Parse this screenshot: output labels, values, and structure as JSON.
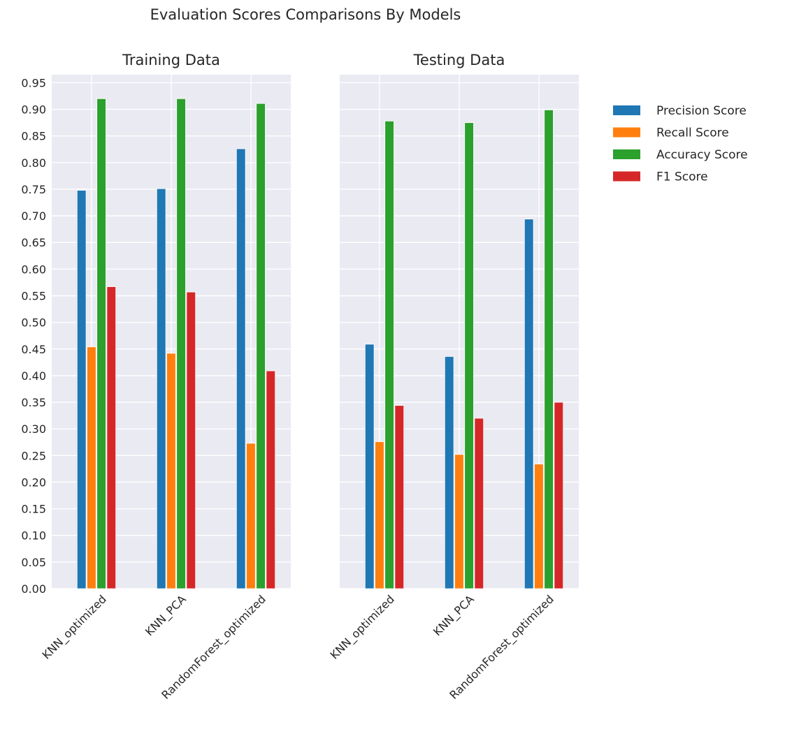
{
  "chart_data": {
    "type": "bar",
    "title": "Evaluation Scores Comparisons By Models",
    "ylim": [
      0,
      0.965
    ],
    "yticks": [
      0.0,
      0.05,
      0.1,
      0.15,
      0.2,
      0.25,
      0.3,
      0.35,
      0.4,
      0.45,
      0.5,
      0.55,
      0.6,
      0.65,
      0.7,
      0.75,
      0.8,
      0.85,
      0.9,
      0.95
    ],
    "ytick_labels": [
      "0.00",
      "0.05",
      "0.10",
      "0.15",
      "0.20",
      "0.25",
      "0.30",
      "0.35",
      "0.40",
      "0.45",
      "0.50",
      "0.55",
      "0.60",
      "0.65",
      "0.70",
      "0.75",
      "0.80",
      "0.85",
      "0.90",
      "0.95"
    ],
    "grid": true,
    "legend_position": "right",
    "series": [
      {
        "name": "Precision Score",
        "color": "#1f77b4"
      },
      {
        "name": "Recall Score",
        "color": "#ff7f0e"
      },
      {
        "name": "Accuracy Score",
        "color": "#2ca02c"
      },
      {
        "name": "F1 Score",
        "color": "#d62728"
      }
    ],
    "panels": [
      {
        "title": "Training Data",
        "categories": [
          "KNN_optimized",
          "KNN_PCA",
          "RandomForest_optimized"
        ],
        "values": [
          [
            0.748,
            0.751,
            0.826
          ],
          [
            0.454,
            0.442,
            0.273
          ],
          [
            0.92,
            0.92,
            0.911
          ],
          [
            0.567,
            0.557,
            0.409
          ]
        ]
      },
      {
        "title": "Testing Data",
        "categories": [
          "KNN_optimized",
          "KNN_PCA",
          "RandomForest_optimized"
        ],
        "values": [
          [
            0.459,
            0.436,
            0.694
          ],
          [
            0.276,
            0.252,
            0.234
          ],
          [
            0.878,
            0.875,
            0.899
          ],
          [
            0.344,
            0.32,
            0.35
          ]
        ]
      }
    ]
  }
}
